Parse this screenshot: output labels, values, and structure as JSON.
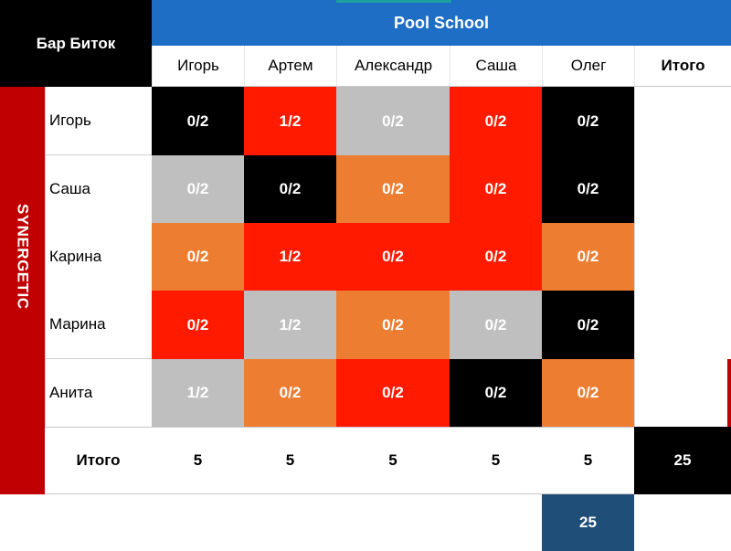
{
  "corner_title": "Бар Биток",
  "team_top": "Pool School",
  "team_side": "SYNERGETIC",
  "columns": [
    "Игорь",
    "Артем",
    "Александр",
    "Саша",
    "Олег"
  ],
  "total_header": "Итого",
  "rows": [
    {
      "name": "Игорь",
      "cells": [
        "0/2",
        "1/2",
        "0/2",
        "0/2",
        "0/2"
      ]
    },
    {
      "name": "Саша",
      "cells": [
        "0/2",
        "0/2",
        "0/2",
        "0/2",
        "0/2"
      ]
    },
    {
      "name": "Карина",
      "cells": [
        "0/2",
        "1/2",
        "0/2",
        "0/2",
        "0/2"
      ]
    },
    {
      "name": "Марина",
      "cells": [
        "0/2",
        "1/2",
        "0/2",
        "0/2",
        "0/2"
      ]
    },
    {
      "name": "Анита",
      "cells": [
        "1/2",
        "0/2",
        "0/2",
        "0/2",
        "0/2"
      ]
    }
  ],
  "totals_row_label": "Итого",
  "column_totals": [
    "5",
    "5",
    "5",
    "5",
    "5"
  ],
  "grand_total": "25",
  "sub_total": "25",
  "colors": {
    "black": "#000000",
    "red": "#ff1a00",
    "grey": "#bfbfbf",
    "orange": "#ed7d31",
    "team_blue": "#1f6ec6",
    "team_red": "#c00000",
    "navy": "#1f4e79"
  },
  "cell_colors": [
    [
      "black",
      "red",
      "grey",
      "red",
      "black"
    ],
    [
      "grey",
      "black",
      "orange",
      "red",
      "black"
    ],
    [
      "orange",
      "red",
      "red",
      "red",
      "orange"
    ],
    [
      "red",
      "grey",
      "orange",
      "grey",
      "black"
    ],
    [
      "grey",
      "orange",
      "red",
      "black",
      "orange"
    ]
  ]
}
